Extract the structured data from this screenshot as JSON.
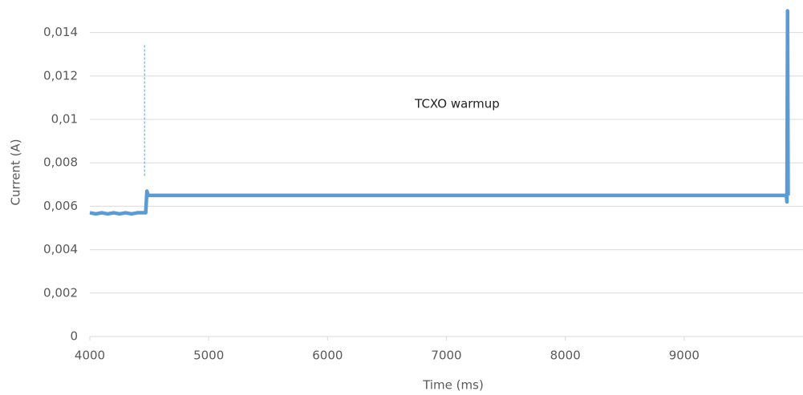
{
  "chart_data": {
    "type": "line",
    "x_label": "Time (ms)",
    "y_label": "Current (A)",
    "annotation": "TCXO warmup",
    "x": [
      4000,
      4050,
      4100,
      4150,
      4200,
      4250,
      4300,
      4350,
      4400,
      4470,
      4480,
      4490,
      4500,
      9860,
      9865,
      9870,
      9875
    ],
    "series": [
      {
        "color": "#5b9bd5",
        "values": [
          0.0057,
          0.00565,
          0.0057,
          0.00565,
          0.0057,
          0.00565,
          0.0057,
          0.00565,
          0.0057,
          0.0057,
          0.0067,
          0.0065,
          0.0065,
          0.0065,
          0.0062,
          0.015,
          0.0065
        ]
      }
    ],
    "marker_line": {
      "x": 4460,
      "y": [
        0.0074,
        0.0135
      ],
      "color": "#5b9bd5"
    },
    "xlim": [
      4000,
      10000
    ],
    "ylim": [
      0,
      0.0155
    ],
    "xticks": [
      4000,
      5000,
      6000,
      7000,
      8000,
      9000
    ],
    "yticks": [
      0,
      {
        "value": 0.002,
        "label": "0,002"
      },
      {
        "value": 0.004,
        "label": "0,004"
      },
      {
        "value": 0.006,
        "label": "0,006"
      },
      {
        "value": 0.008,
        "label": "0,008"
      },
      {
        "value": 0.01,
        "label": "0,01"
      },
      {
        "value": 0.012,
        "label": "0,012"
      },
      {
        "value": 0.014,
        "label": "0,014"
      }
    ],
    "grid": true
  }
}
